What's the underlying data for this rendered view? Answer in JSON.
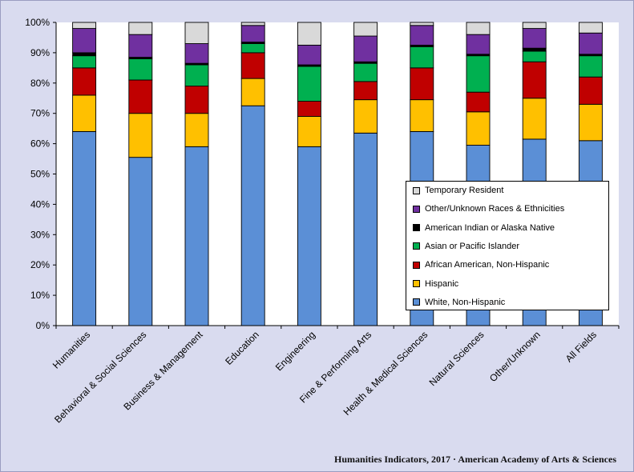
{
  "credit": "Humanities Indicators, 2017 · American Academy of Arts & Sciences",
  "chart_data": {
    "type": "bar",
    "stacked": true,
    "percent": true,
    "ylim": [
      0,
      100
    ],
    "yticks": [
      0,
      10,
      20,
      30,
      40,
      50,
      60,
      70,
      80,
      90,
      100
    ],
    "ytick_labels": [
      "0%",
      "10%",
      "20%",
      "30%",
      "40%",
      "50%",
      "60%",
      "70%",
      "80%",
      "90%",
      "100%"
    ],
    "grid": false,
    "legend_position": "center-right",
    "categories": [
      "Humanities",
      "Behavioral & Social Sciences",
      "Business & Management",
      "Education",
      "Engineering",
      "Fine & Performing Arts",
      "Health & Medical Sciences",
      "Natural Sciences",
      "Other/Unknown",
      "All Fields"
    ],
    "series": [
      {
        "name": "White, Non-Hispanic",
        "color": "#5b8fd6",
        "values": [
          64,
          55.5,
          59,
          72.5,
          59,
          63.5,
          64,
          59.5,
          61.5,
          61
        ]
      },
      {
        "name": "Hispanic",
        "color": "#ffc000",
        "values": [
          12,
          14.5,
          11,
          9,
          10,
          11,
          10.5,
          11,
          13.5,
          12
        ]
      },
      {
        "name": "African American, Non-Hispanic",
        "color": "#c00000",
        "values": [
          9,
          11,
          9,
          8.5,
          5,
          6,
          10.5,
          6.5,
          12,
          9
        ]
      },
      {
        "name": "Asian or Pacific Islander",
        "color": "#00b050",
        "values": [
          4,
          7,
          7,
          3,
          11.5,
          6,
          7,
          12,
          3.5,
          7
        ]
      },
      {
        "name": "American Indian or Alaska Native",
        "color": "#000000",
        "values": [
          1,
          0.5,
          0.5,
          0.5,
          0.5,
          0.5,
          0.5,
          0.5,
          1,
          0.5
        ]
      },
      {
        "name": "Other/Unknown Races & Ethnicities",
        "color": "#7030a0",
        "values": [
          8,
          7.5,
          6.5,
          5.5,
          6.5,
          8.5,
          6.5,
          6.5,
          6.5,
          7
        ]
      },
      {
        "name": "Temporary Resident",
        "color": "#d9d9d9",
        "values": [
          2,
          4,
          7,
          1,
          7.5,
          4.5,
          1,
          4,
          2,
          3.5
        ]
      }
    ]
  }
}
